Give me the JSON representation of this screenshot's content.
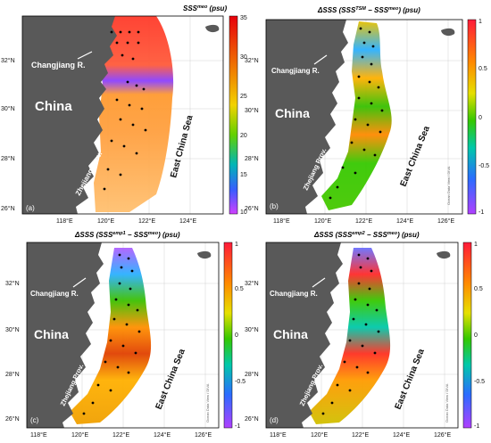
{
  "panels": [
    {
      "id": "a",
      "panel_letter": "(a)",
      "title": "SSS",
      "title_sup": "meo",
      "title_tail": " (psu)",
      "colorbar_ticks": [
        "35",
        "30",
        "25",
        "20",
        "15",
        "10"
      ],
      "colorbar_range": [
        10,
        35
      ],
      "colorbar_colors": [
        "#e8000b",
        "#f08a00",
        "#f2d200",
        "#63d000",
        "#00b5b5",
        "#3a5cff",
        "#d040ff"
      ],
      "watermark": ""
    },
    {
      "id": "b",
      "panel_letter": "(b)",
      "title": "ΔSSS (SSS",
      "title_sup": "TSM",
      "title_tail": " − SSS",
      "title_sup2": "meo",
      "title_tail2": ") (psu)",
      "colorbar_ticks": [
        "1",
        "0.5",
        "0",
        "-0.5",
        "-1"
      ],
      "colorbar_range": [
        -1,
        1
      ],
      "colorbar_colors": [
        "#ff1a3a",
        "#ff8a00",
        "#e6e000",
        "#34c800",
        "#00c8aa",
        "#2b6cff",
        "#b040ff"
      ],
      "watermark": "Ocean Data View / DIVA"
    },
    {
      "id": "c",
      "panel_letter": "(c)",
      "title": "ΔSSS (SSS",
      "title_sup": "emp1",
      "title_tail": " − SSS",
      "title_sup2": "meo",
      "title_tail2": ") (psu)",
      "colorbar_ticks": [
        "1",
        "0.5",
        "0",
        "-0.5",
        "-1"
      ],
      "colorbar_range": [
        -1,
        1
      ],
      "colorbar_colors": [
        "#ff1a3a",
        "#ff8a00",
        "#e6e000",
        "#34c800",
        "#00c8aa",
        "#2b6cff",
        "#b040ff"
      ],
      "watermark": "Ocean Data View / DIVA"
    },
    {
      "id": "d",
      "panel_letter": "(d)",
      "title": "ΔSSS (SSS",
      "title_sup": "emp2",
      "title_tail": " − SSS",
      "title_sup2": "meo",
      "title_tail2": ") (psu)",
      "colorbar_ticks": [
        "1",
        "0.5",
        "0",
        "-0.5",
        "-1"
      ],
      "colorbar_range": [
        -1,
        1
      ],
      "colorbar_colors": [
        "#ff1a3a",
        "#ff8a00",
        "#e6e000",
        "#34c800",
        "#00c8aa",
        "#2b6cff",
        "#b040ff"
      ],
      "watermark": "Ocean Data View / DIVA"
    }
  ],
  "map_labels": {
    "china": "China",
    "changjiang": "Changjiang R.",
    "zhejiang": "Zhejiang Prov.",
    "east_china_sea": "East China Sea"
  },
  "lat_ticks": [
    "32°N",
    "30°N",
    "28°N",
    "26°N"
  ],
  "lon_ticks": [
    "118°E",
    "120°E",
    "122°E",
    "124°E",
    "126°E"
  ],
  "colors": {
    "land": "#595959",
    "sea": "#ffffff",
    "station": "#000000"
  }
}
